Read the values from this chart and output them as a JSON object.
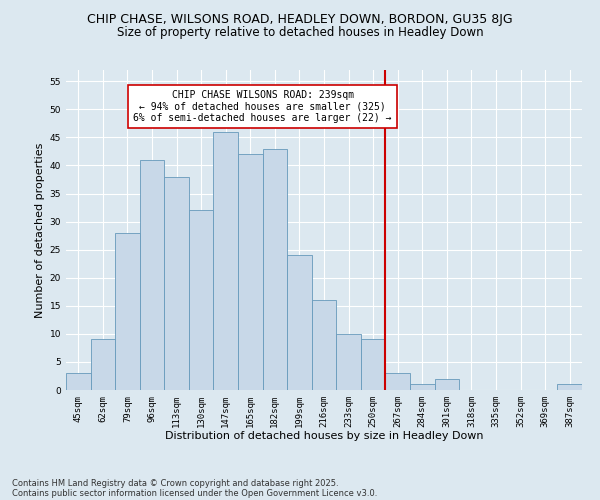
{
  "title_line1": "CHIP CHASE, WILSONS ROAD, HEADLEY DOWN, BORDON, GU35 8JG",
  "title_line2": "Size of property relative to detached houses in Headley Down",
  "xlabel": "Distribution of detached houses by size in Headley Down",
  "ylabel": "Number of detached properties",
  "categories": [
    "45sqm",
    "62sqm",
    "79sqm",
    "96sqm",
    "113sqm",
    "130sqm",
    "147sqm",
    "165sqm",
    "182sqm",
    "199sqm",
    "216sqm",
    "233sqm",
    "250sqm",
    "267sqm",
    "284sqm",
    "301sqm",
    "318sqm",
    "335sqm",
    "352sqm",
    "369sqm",
    "387sqm"
  ],
  "values": [
    3,
    9,
    28,
    41,
    38,
    32,
    46,
    42,
    43,
    24,
    16,
    10,
    9,
    3,
    1,
    2,
    0,
    0,
    0,
    0,
    1
  ],
  "bar_color": "#c8d8e8",
  "bar_edge_color": "#6699bb",
  "vline_x_index": 12.5,
  "vline_color": "#cc0000",
  "annotation_text": "CHIP CHASE WILSONS ROAD: 239sqm\n← 94% of detached houses are smaller (325)\n6% of semi-detached houses are larger (22) →",
  "annotation_box_color": "#ffffff",
  "annotation_box_edge_color": "#cc0000",
  "ylim": [
    0,
    57
  ],
  "yticks": [
    0,
    5,
    10,
    15,
    20,
    25,
    30,
    35,
    40,
    45,
    50,
    55
  ],
  "background_color": "#dce8f0",
  "plot_background_color": "#dce8f0",
  "footer_line1": "Contains HM Land Registry data © Crown copyright and database right 2025.",
  "footer_line2": "Contains public sector information licensed under the Open Government Licence v3.0.",
  "annotation_fontsize": 7,
  "title_fontsize1": 9,
  "title_fontsize2": 8.5,
  "xlabel_fontsize": 8,
  "ylabel_fontsize": 8,
  "tick_fontsize": 6.5,
  "footer_fontsize": 6
}
